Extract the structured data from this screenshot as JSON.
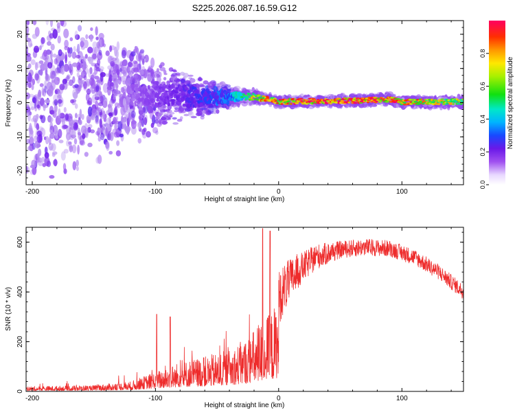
{
  "title": "S225.2026.087.16.59.G12",
  "colors": {
    "snr_line": "#ee2c2c",
    "spectro_faint": "#c9b4f2",
    "spectro_core": "#7a2cf0",
    "axis": "#000000"
  },
  "chart_data": [
    {
      "id": "spectrogram",
      "type": "heatmap",
      "title": "S225.2026.087.16.59.G12",
      "xlabel": "Height of straight line (km)",
      "ylabel": "Frequency (Hz)",
      "xlim": [
        -205,
        150
      ],
      "ylim": [
        -24,
        24
      ],
      "xticks": [
        -200,
        -100,
        0,
        100
      ],
      "yticks": [
        -20,
        -10,
        0,
        10,
        20
      ],
      "colorbar": {
        "label": "Normalized spectral amplitude",
        "range": [
          0.0,
          1.0
        ],
        "ticks": [
          0.0,
          0.2,
          0.4,
          0.6,
          0.8
        ],
        "colormap": "rainbow (magenta-blue-cyan-green-yellow-red)"
      },
      "signal_center_hz": [
        {
          "x": -120,
          "y": 2.0
        },
        {
          "x": -80,
          "y": 2.0
        },
        {
          "x": -40,
          "y": 1.5
        },
        {
          "x": -20,
          "y": 1.8
        },
        {
          "x": -10,
          "y": 1.0
        },
        {
          "x": 0,
          "y": 0.3
        },
        {
          "x": 50,
          "y": 0.5
        },
        {
          "x": 92,
          "y": 1.0
        },
        {
          "x": 100,
          "y": 0.2
        },
        {
          "x": 150,
          "y": 0.3
        }
      ],
      "signal_halfwidth_hz": [
        {
          "x": -205,
          "y": 24
        },
        {
          "x": -120,
          "y": 14
        },
        {
          "x": -90,
          "y": 8
        },
        {
          "x": -60,
          "y": 5
        },
        {
          "x": -40,
          "y": 3
        },
        {
          "x": -30,
          "y": 2
        },
        {
          "x": 0,
          "y": 1.5
        },
        {
          "x": 150,
          "y": 1.5
        }
      ],
      "peak_amplitude": [
        {
          "x": -205,
          "y": 0.05
        },
        {
          "x": -120,
          "y": 0.1
        },
        {
          "x": -80,
          "y": 0.25
        },
        {
          "x": -40,
          "y": 0.4
        },
        {
          "x": -15,
          "y": 0.8
        },
        {
          "x": 0,
          "y": 0.85
        },
        {
          "x": 60,
          "y": 0.95
        },
        {
          "x": 90,
          "y": 0.9
        },
        {
          "x": 150,
          "y": 0.7
        }
      ]
    },
    {
      "id": "snr",
      "type": "line",
      "xlabel": "Height of straight line (km)",
      "ylabel": "SNR (10 * v/v)",
      "xlim": [
        -205,
        150
      ],
      "ylim": [
        0,
        660
      ],
      "xticks": [
        -200,
        -100,
        0,
        100
      ],
      "yticks": [
        0,
        200,
        400,
        600
      ],
      "series": [
        {
          "name": "SNR",
          "envelope": [
            {
              "x": -205,
              "y": 20
            },
            {
              "x": -150,
              "y": 25
            },
            {
              "x": -120,
              "y": 40
            },
            {
              "x": -100,
              "y": 80
            },
            {
              "x": -80,
              "y": 120
            },
            {
              "x": -60,
              "y": 140
            },
            {
              "x": -40,
              "y": 170
            },
            {
              "x": -25,
              "y": 220
            },
            {
              "x": -15,
              "y": 280
            },
            {
              "x": -5,
              "y": 330
            },
            {
              "x": 5,
              "y": 420
            },
            {
              "x": 15,
              "y": 480
            },
            {
              "x": 30,
              "y": 540
            },
            {
              "x": 50,
              "y": 570
            },
            {
              "x": 70,
              "y": 580
            },
            {
              "x": 90,
              "y": 575
            },
            {
              "x": 110,
              "y": 540
            },
            {
              "x": 130,
              "y": 480
            },
            {
              "x": 150,
              "y": 400
            }
          ],
          "noise_amplitude": [
            {
              "x": -205,
              "y": 12
            },
            {
              "x": -150,
              "y": 15
            },
            {
              "x": -120,
              "y": 30
            },
            {
              "x": -80,
              "y": 70
            },
            {
              "x": -40,
              "y": 110
            },
            {
              "x": -15,
              "y": 150
            },
            {
              "x": 0,
              "y": 110
            },
            {
              "x": 20,
              "y": 60
            },
            {
              "x": 50,
              "y": 35
            },
            {
              "x": 150,
              "y": 30
            }
          ],
          "peaks": [
            {
              "x": -99,
              "y": 310
            },
            {
              "x": -88,
              "y": 300
            },
            {
              "x": -13,
              "y": 655
            },
            {
              "x": -7,
              "y": 645
            }
          ]
        }
      ]
    }
  ]
}
